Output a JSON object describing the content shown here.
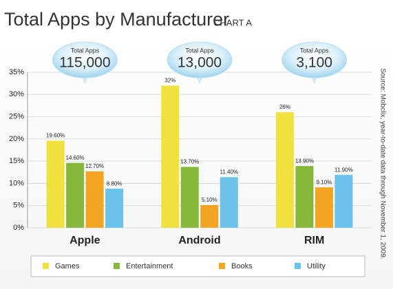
{
  "chart_data": {
    "type": "bar",
    "title": "Total Apps by Manufacturer",
    "subtitle": "CHART A",
    "source": "Source: Mobclix, year-to-date data through November 1, 2009.",
    "categories": [
      "Apple",
      "Android",
      "RIM"
    ],
    "annotations": [
      {
        "title": "Total Apps",
        "text": "115,000"
      },
      {
        "title": "Total Apps",
        "text": "13,000"
      },
      {
        "title": "Total Apps",
        "text": "3,100"
      }
    ],
    "series": [
      {
        "name": "Games",
        "color": "#f0e13f",
        "values": [
          19.6,
          32,
          26
        ],
        "value_labels": [
          "19.60%",
          "32%",
          "26%"
        ]
      },
      {
        "name": "Entertainment",
        "color": "#86b83b",
        "values": [
          14.6,
          13.7,
          13.9
        ],
        "value_labels": [
          "14.60%",
          "13.70%",
          "13.90%"
        ]
      },
      {
        "name": "Books",
        "color": "#f2a423",
        "values": [
          12.7,
          5.1,
          9.1
        ],
        "value_labels": [
          "12.70%",
          "5.10%",
          "9.10%"
        ]
      },
      {
        "name": "Utility",
        "color": "#6cc3ea",
        "values": [
          8.8,
          11.4,
          11.9
        ],
        "value_labels": [
          "8.80%",
          "11.40%",
          "11.90%"
        ]
      }
    ],
    "ylim": [
      0,
      35
    ],
    "yticks": [
      {
        "value": 0,
        "label": "0%"
      },
      {
        "value": 5,
        "label": "5%"
      },
      {
        "value": 10,
        "label": "10%"
      },
      {
        "value": 15,
        "label": "15%"
      },
      {
        "value": 20,
        "label": "20%"
      },
      {
        "value": 25,
        "label": "25%"
      },
      {
        "value": 30,
        "label": "30%"
      },
      {
        "value": 35,
        "label": "35%"
      }
    ],
    "grid": true,
    "legend": "bottom"
  }
}
